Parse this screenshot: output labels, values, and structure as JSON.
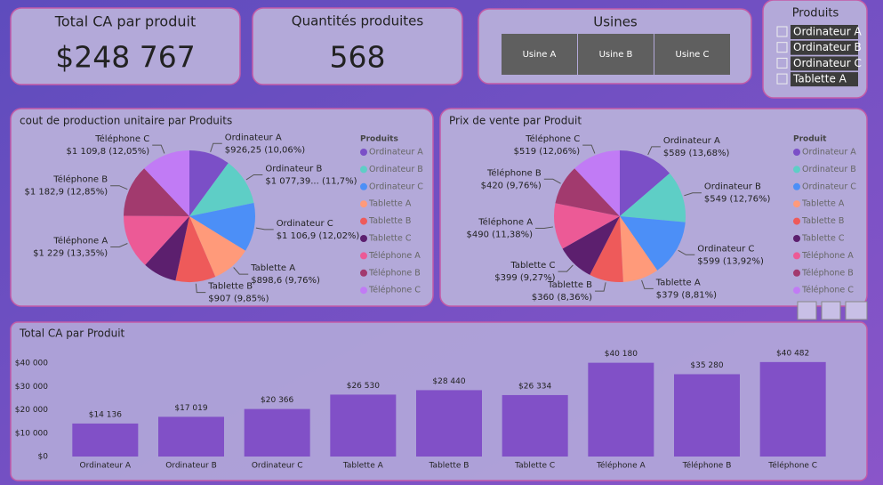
{
  "cards": [
    {
      "title": "Total CA par produit",
      "value": "$248 767"
    },
    {
      "title": "Quantités produites",
      "value": "568"
    }
  ],
  "usines": {
    "title": "Usines",
    "options": [
      "Usine A",
      "Usine B",
      "Usine C"
    ]
  },
  "produits": {
    "title": "Produits",
    "options": [
      "Ordinateur A",
      "Ordinateur B",
      "Ordinateur C",
      "Tablette A"
    ]
  },
  "chart_data": [
    {
      "type": "pie",
      "title": "cout de production unitaire par Produits",
      "legend_title": "Produits",
      "categories": [
        "Ordinateur A",
        "Ordinateur B",
        "Ordinateur C",
        "Tablette A",
        "Tablette B",
        "Tablette C",
        "Téléphone A",
        "Téléphone B",
        "Téléphone C"
      ],
      "values": [
        926.25,
        1077.39,
        1106.9,
        898.6,
        907,
        770,
        1229,
        1182.9,
        1109.8
      ],
      "value_labels": [
        "$926,25 (10,06%)",
        "$1 077,39... (11,7%)",
        "$1 106,9 (12,02%)",
        "$898,6 (9,76%)",
        "$907 (9,85%)",
        null,
        "$1 229 (13,35%)",
        "$1 182,9 (12,85%)",
        "$1 109,8 (12,05%)"
      ],
      "colors": [
        "#7b4fc7",
        "#5ecec6",
        "#4c8ff7",
        "#ff9a7a",
        "#ee5a5a",
        "#5c1f6e",
        "#ec5a96",
        "#a23a6e",
        "#c17bf5"
      ]
    },
    {
      "type": "pie",
      "title": "Prix de vente par Produit",
      "legend_title": "Produit",
      "categories": [
        "Ordinateur A",
        "Ordinateur B",
        "Ordinateur C",
        "Tablette A",
        "Tablette B",
        "Tablette C",
        "Téléphone A",
        "Téléphone B",
        "Téléphone C"
      ],
      "values": [
        589,
        549,
        599,
        379,
        360,
        399,
        490,
        420,
        519
      ],
      "value_labels": [
        "$589 (13,68%)",
        "$549 (12,76%)",
        "$599 (13,92%)",
        "$379 (8,81%)",
        "$360 (8,36%)",
        "$399 (9,27%)",
        "$490 (11,38%)",
        "$420 (9,76%)",
        "$519 (12,06%)"
      ],
      "colors": [
        "#7b4fc7",
        "#5ecec6",
        "#4c8ff7",
        "#ff9a7a",
        "#ee5a5a",
        "#5c1f6e",
        "#ec5a96",
        "#a23a6e",
        "#c17bf5"
      ]
    },
    {
      "type": "bar",
      "title": "Total CA par Produit",
      "categories": [
        "Ordinateur A",
        "Ordinateur B",
        "Ordinateur C",
        "Tablette A",
        "Tablette B",
        "Tablette C",
        "Téléphone A",
        "Téléphone B",
        "Téléphone C"
      ],
      "values": [
        14136,
        17019,
        20366,
        26530,
        28440,
        26334,
        40180,
        35280,
        40482
      ],
      "value_labels": [
        "$14 136",
        "$17 019",
        "$20 366",
        "$26 530",
        "$28 440",
        "$26 334",
        "$40 180",
        "$35 280",
        "$40 482"
      ],
      "color": "#8150c7",
      "ylim": [
        0,
        45000
      ],
      "yticks": [
        {
          "value": 0,
          "label": "$0"
        },
        {
          "value": 10000,
          "label": "$10 000"
        },
        {
          "value": 20000,
          "label": "$20 000"
        },
        {
          "value": 30000,
          "label": "$30 000"
        },
        {
          "value": 40000,
          "label": "$40 000"
        }
      ]
    }
  ]
}
